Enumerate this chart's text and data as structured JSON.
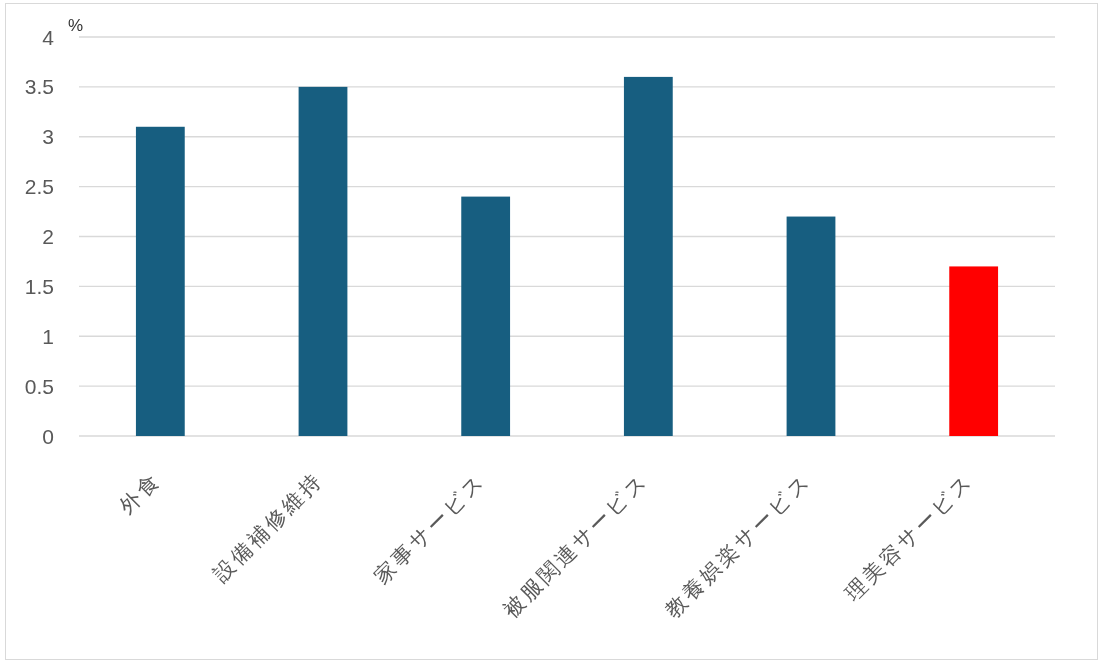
{
  "chart_data": {
    "type": "bar",
    "ylabel": "%",
    "categories": [
      "外食",
      "設備補修維持",
      "家事サービス",
      "被服関連サービス",
      "教養娯楽サービス",
      "理美容サービス"
    ],
    "values": [
      3.1,
      3.5,
      2.4,
      3.6,
      2.2,
      1.7
    ],
    "colors": [
      "#175e80",
      "#175e80",
      "#175e80",
      "#175e80",
      "#175e80",
      "#ff0000"
    ],
    "ylim": [
      0,
      4
    ],
    "yticks": [
      0,
      0.5,
      1,
      1.5,
      2,
      2.5,
      3,
      3.5,
      4
    ],
    "grid": "y"
  }
}
